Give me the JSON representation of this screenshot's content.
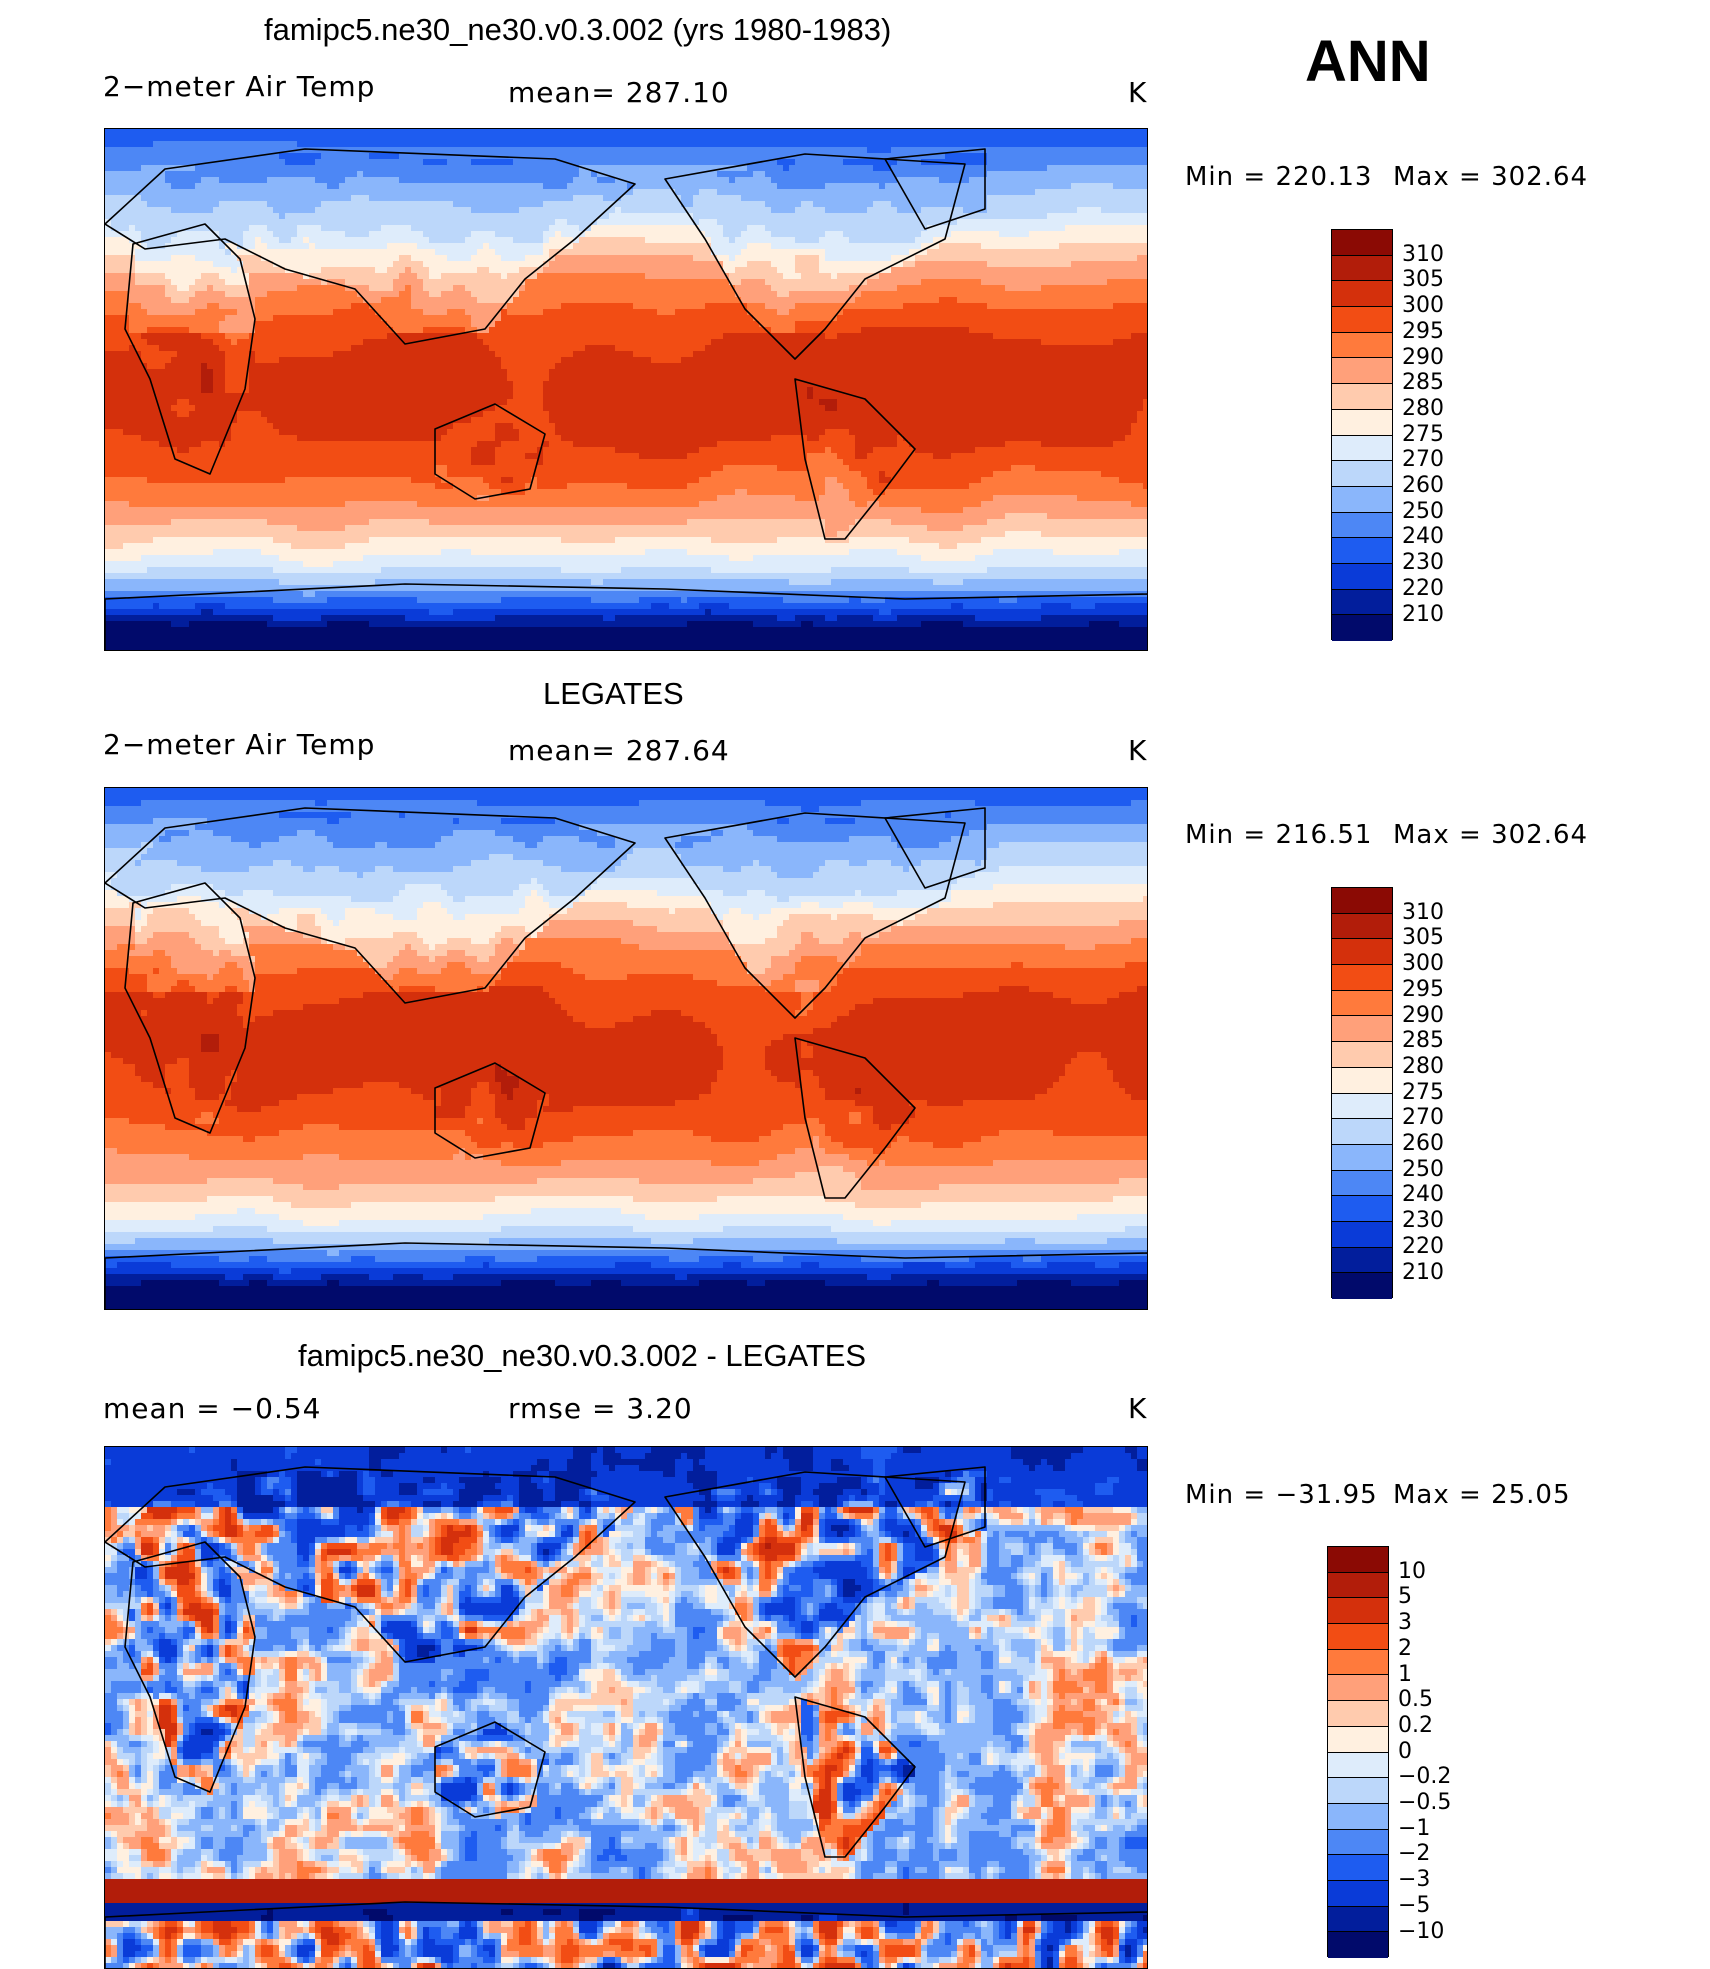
{
  "season": "ANN",
  "chart_data": [
    {
      "type": "heatmap",
      "title": "famipc5.ne30_ne30.v0.3.002 (yrs 1980-1983)",
      "left_label": "2−meter Air Temp",
      "center_label": "mean=  287.10",
      "units": "K",
      "min_label": "Min  =  220.13",
      "max_label": "Max  =  302.64",
      "min": 220.13,
      "max": 302.64,
      "mean": 287.1,
      "levels": [
        "310",
        "305",
        "300",
        "295",
        "290",
        "285",
        "280",
        "275",
        "270",
        "260",
        "250",
        "240",
        "230",
        "220",
        "210"
      ],
      "colors": [
        "#8b0a04",
        "#b21d0a",
        "#d4300c",
        "#f24d14",
        "#ff7a3c",
        "#ffa07a",
        "#ffcbae",
        "#fff0e0",
        "#deecfb",
        "#bcd7fa",
        "#8ab6fb",
        "#4d87f5",
        "#1e5cf0",
        "#0a3bd8",
        "#021e9c",
        "#010a6b"
      ]
    },
    {
      "type": "heatmap",
      "title": "LEGATES",
      "left_label": "2−meter Air Temp",
      "center_label": "mean=  287.64",
      "units": "K",
      "min_label": "Min  =  216.51",
      "max_label": "Max  =  302.64",
      "min": 216.51,
      "max": 302.64,
      "mean": 287.64,
      "levels": [
        "310",
        "305",
        "300",
        "295",
        "290",
        "285",
        "280",
        "275",
        "270",
        "260",
        "250",
        "240",
        "230",
        "220",
        "210"
      ],
      "colors": [
        "#8b0a04",
        "#b21d0a",
        "#d4300c",
        "#f24d14",
        "#ff7a3c",
        "#ffa07a",
        "#ffcbae",
        "#fff0e0",
        "#deecfb",
        "#bcd7fa",
        "#8ab6fb",
        "#4d87f5",
        "#1e5cf0",
        "#0a3bd8",
        "#021e9c",
        "#010a6b"
      ]
    },
    {
      "type": "heatmap",
      "title": "famipc5.ne30_ne30.v0.3.002 - LEGATES",
      "left_label": "mean  =    −0.54",
      "center_label": "rmse  =     3.20",
      "units": "K",
      "min_label": "Min  =  −31.95",
      "max_label": "Max  =    25.05",
      "min": -31.95,
      "max": 25.05,
      "mean": -0.54,
      "rmse": 3.2,
      "levels": [
        "10",
        "5",
        "3",
        "2",
        "1",
        "0.5",
        "0.2",
        "0",
        "−0.2",
        "−0.5",
        "−1",
        "−2",
        "−3",
        "−5",
        "−10"
      ],
      "colors": [
        "#8b0a04",
        "#b21d0a",
        "#d4300c",
        "#f24d14",
        "#ff7a3c",
        "#ffa07a",
        "#ffcbae",
        "#fff0e0",
        "#deecfb",
        "#bcd7fa",
        "#8ab6fb",
        "#4d87f5",
        "#1e5cf0",
        "#0a3bd8",
        "#021e9c",
        "#010a6b"
      ]
    }
  ]
}
